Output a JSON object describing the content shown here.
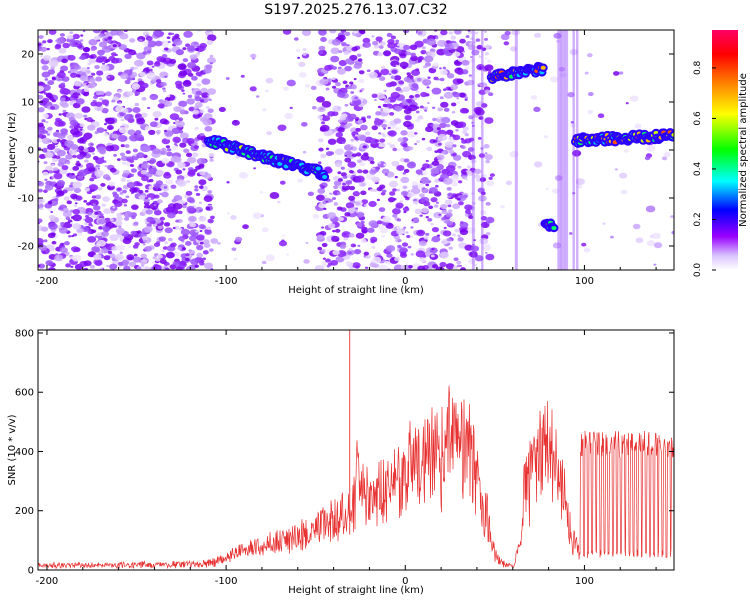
{
  "title": "S197.2025.276.13.07.C32",
  "chart_data": [
    {
      "type": "heatmap",
      "xlabel": "Height of straight line (km)",
      "ylabel": "Frequency (Hz)",
      "xlim": [
        -205,
        150
      ],
      "ylim": [
        -25,
        25
      ],
      "xticks": [
        -200,
        -100,
        0,
        100
      ],
      "yticks": [
        20,
        10,
        0,
        -10,
        -20
      ],
      "colorbar": {
        "label": "Normalized spectral amplitude",
        "range": [
          0.0,
          0.95
        ],
        "ticks": [
          0.0,
          0.2,
          0.4,
          0.6,
          0.8
        ],
        "colors": [
          "#ffffff",
          "#9900ff",
          "#0000ff",
          "#00ffff",
          "#00ff00",
          "#ffff00",
          "#ff7f00",
          "#ff0000",
          "#ff0066"
        ]
      },
      "features": [
        {
          "x_start": -110,
          "x_end": -45,
          "freq_start": 2,
          "freq_end": -5,
          "amplitude": 0.3
        },
        {
          "x_start": 48,
          "x_end": 77,
          "freq_start": 15,
          "freq_end": 17,
          "amplitude": 0.6
        },
        {
          "x_start": 78,
          "x_end": 83,
          "freq_start": -15,
          "freq_end": -16,
          "amplitude": 0.5
        },
        {
          "x_start": 95,
          "x_end": 150,
          "freq_start": 2,
          "freq_end": 3,
          "amplitude": 0.65
        }
      ]
    },
    {
      "type": "line",
      "xlabel": "Height of straight line (km)",
      "ylabel": "SNR (10 * v/v)",
      "xlim": [
        -205,
        150
      ],
      "ylim": [
        0,
        810
      ],
      "xticks": [
        -200,
        -100,
        0,
        100
      ],
      "yticks": [
        0,
        200,
        400,
        600,
        800
      ],
      "series": [
        {
          "name": "SNR",
          "color": "#e83232",
          "x": [
            -205,
            -180,
            -160,
            -140,
            -120,
            -110,
            -100,
            -90,
            -80,
            -70,
            -60,
            -50,
            -45,
            -40,
            -35,
            -30,
            -27,
            -25,
            -20,
            -15,
            -10,
            -5,
            0,
            5,
            10,
            15,
            20,
            25,
            30,
            33,
            36,
            40,
            44,
            48,
            52,
            56,
            60,
            62,
            64,
            66,
            68,
            72,
            76,
            80,
            84,
            88,
            92,
            96,
            100,
            110,
            120,
            130,
            140,
            150
          ],
          "values": [
            25,
            25,
            25,
            28,
            30,
            35,
            60,
            90,
            110,
            130,
            150,
            170,
            230,
            220,
            250,
            280,
            450,
            380,
            330,
            350,
            380,
            420,
            440,
            480,
            500,
            540,
            570,
            590,
            600,
            590,
            560,
            420,
            230,
            80,
            30,
            20,
            10,
            60,
            120,
            380,
            420,
            480,
            560,
            590,
            480,
            360,
            180,
            100,
            60,
            80,
            120,
            180,
            250,
            320
          ]
        }
      ]
    }
  ]
}
